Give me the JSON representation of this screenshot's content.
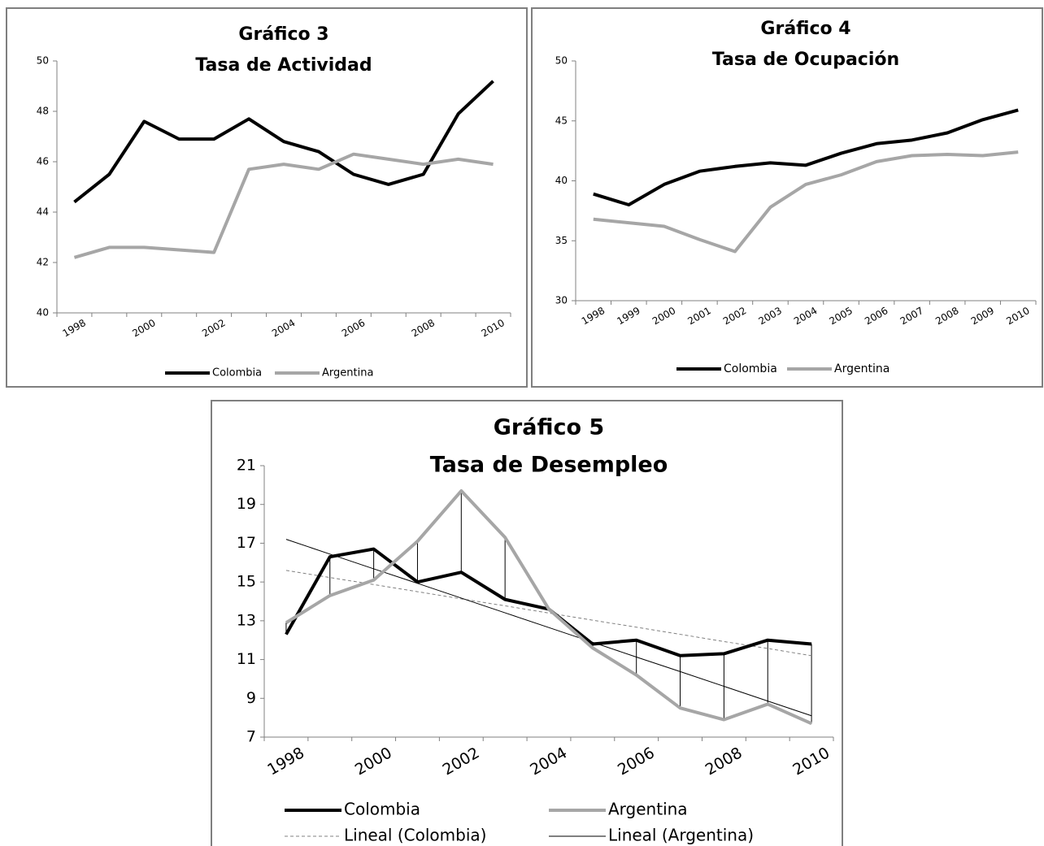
{
  "chart_data": [
    {
      "type": "line",
      "title": "Gráfico 3",
      "subtitle": "Tasa de Actividad",
      "categories": [
        "1998",
        null,
        "2000",
        null,
        "2002",
        null,
        "2004",
        null,
        "2006",
        null,
        "2008",
        null,
        "2010"
      ],
      "ylim": [
        40,
        50
      ],
      "yticks": [
        40,
        42,
        44,
        46,
        48,
        50
      ],
      "legend": "bottom",
      "series": [
        {
          "name": "Colombia",
          "color": "#000000",
          "width": 4,
          "values": [
            44.4,
            45.5,
            47.6,
            46.9,
            46.9,
            47.7,
            46.8,
            46.4,
            45.5,
            45.1,
            45.5,
            47.9,
            49.2
          ]
        },
        {
          "name": "Argentina",
          "color": "#a6a6a6",
          "width": 4,
          "values": [
            42.2,
            42.6,
            42.6,
            42.5,
            42.4,
            45.7,
            45.9,
            45.7,
            46.3,
            46.1,
            45.9,
            46.1,
            45.9
          ]
        }
      ]
    },
    {
      "type": "line",
      "title": "Gráfico 4",
      "subtitle": "Tasa de Ocupación",
      "categories": [
        "1998",
        "1999",
        "2000",
        "2001",
        "2002",
        "2003",
        "2004",
        "2005",
        "2006",
        "2007",
        "2008",
        "2009",
        "2010"
      ],
      "ylim": [
        30,
        50
      ],
      "yticks": [
        30,
        35,
        40,
        45,
        50
      ],
      "legend": "bottom",
      "series": [
        {
          "name": "Colombia",
          "color": "#000000",
          "width": 4,
          "values": [
            38.9,
            38.0,
            39.7,
            40.8,
            41.2,
            41.5,
            41.3,
            42.3,
            43.1,
            43.4,
            44.0,
            45.1,
            45.9
          ]
        },
        {
          "name": "Argentina",
          "color": "#a6a6a6",
          "width": 4,
          "values": [
            36.8,
            36.5,
            36.2,
            35.1,
            34.1,
            37.8,
            39.7,
            40.5,
            41.6,
            42.1,
            42.2,
            42.1,
            42.4
          ]
        }
      ]
    },
    {
      "type": "line",
      "title": "Gráfico 5",
      "subtitle": "Tasa de Desempleo",
      "categories": [
        "1998",
        null,
        "2000",
        null,
        "2002",
        null,
        "2004",
        null,
        "2006",
        null,
        "2008",
        null,
        "2010"
      ],
      "ylim": [
        7,
        21
      ],
      "yticks": [
        7,
        9,
        11,
        13,
        15,
        17,
        19,
        21
      ],
      "legend": "bottom",
      "drop_lines": true,
      "series": [
        {
          "name": "Colombia",
          "color": "#000000",
          "width": 4,
          "values": [
            12.3,
            16.3,
            16.7,
            15.0,
            15.5,
            14.1,
            13.6,
            11.8,
            12.0,
            11.2,
            11.3,
            12.0,
            11.8
          ]
        },
        {
          "name": "Argentina",
          "color": "#a6a6a6",
          "width": 4,
          "values": [
            12.9,
            14.3,
            15.1,
            17.1,
            19.7,
            17.3,
            13.6,
            11.6,
            10.2,
            8.5,
            7.9,
            8.7,
            7.7
          ]
        },
        {
          "name": "Lineal (Colombia)",
          "color": "#808080",
          "width": 1,
          "line_style": "dashed",
          "values": [
            15.6,
            15.23,
            14.87,
            14.5,
            14.13,
            13.77,
            13.4,
            13.03,
            12.67,
            12.3,
            11.93,
            11.57,
            11.2
          ]
        },
        {
          "name": "Lineal (Argentina)",
          "color": "#000000",
          "width": 1,
          "values": [
            17.2,
            16.44,
            15.68,
            14.93,
            14.17,
            13.41,
            12.65,
            11.89,
            11.13,
            10.38,
            9.62,
            8.86,
            8.1
          ]
        }
      ]
    }
  ]
}
